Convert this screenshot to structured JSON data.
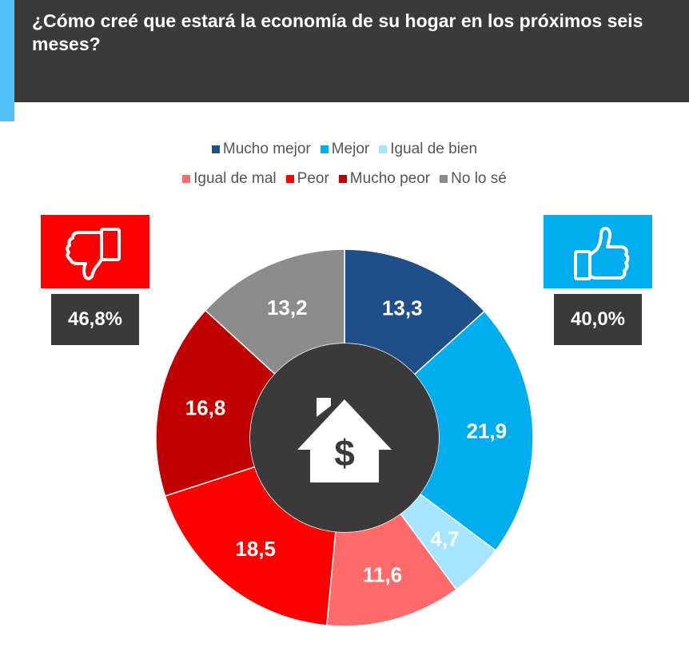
{
  "title": "¿Cómo creé que estará la economía de su hogar en los próximos seis meses?",
  "negative_total": "46,8%",
  "positive_total": "40,0%",
  "icons": {
    "negative": "thumbs-down-icon",
    "positive": "thumbs-up-icon",
    "center": "house-dollar-icon"
  },
  "colors": {
    "header": "#3a3a3b",
    "accent": "#4fc3f7",
    "negative": "#ff0000",
    "positive": "#00aeef"
  },
  "chart_data": {
    "type": "donut",
    "legend_placement": "top",
    "categories": [
      "Mucho mejor",
      "Mejor",
      "Igual de bien",
      "Igual de mal",
      "Peor",
      "Mucho peor",
      "No lo sé"
    ],
    "values": [
      13.3,
      21.9,
      4.7,
      11.6,
      18.5,
      16.8,
      13.2
    ],
    "labels": [
      "13,3",
      "21,9",
      "4,7",
      "11,6",
      "18,5",
      "16,8",
      "13,2"
    ],
    "colors": [
      "#1f4e89",
      "#00aeef",
      "#a6e4ff",
      "#ff6b6b",
      "#ff0000",
      "#c00000",
      "#8c8c8c"
    ]
  }
}
